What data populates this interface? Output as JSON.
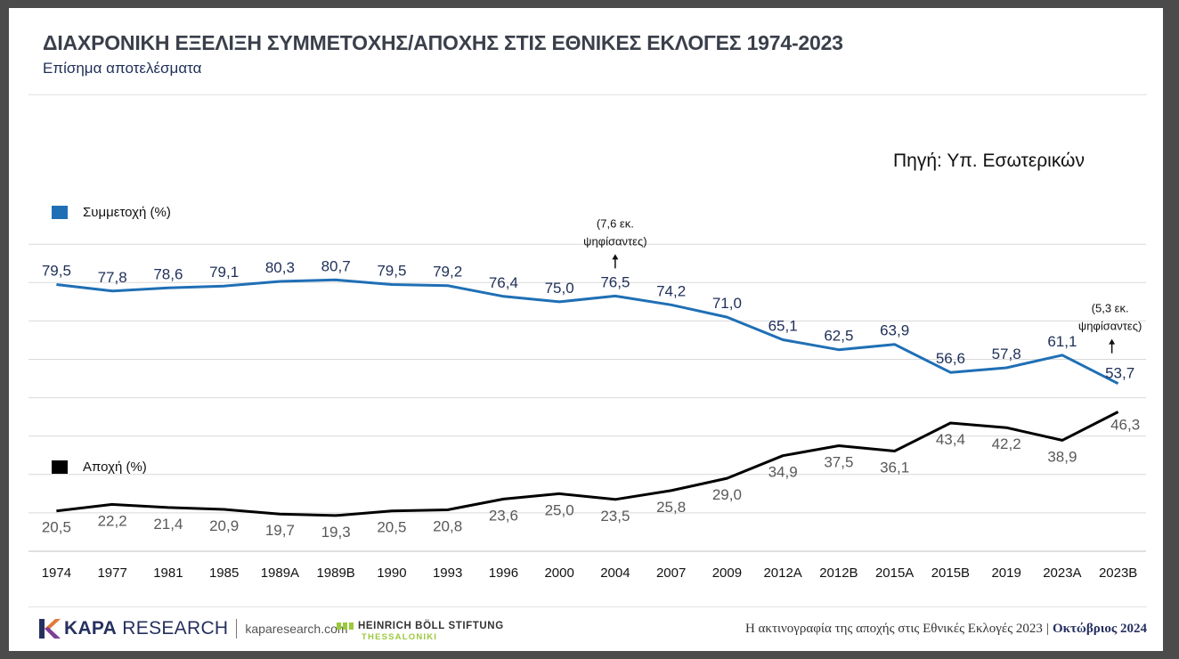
{
  "header": {
    "title": "ΔΙΑΧΡΟΝΙΚΗ ΕΞΕΛΙΞΗ ΣΥΜΜΕΤΟΧΗΣ/ΑΠΟΧΗΣ ΣΤΙΣ ΕΘΝΙΚΕΣ ΕΚΛΟΓΕΣ 1974-2023",
    "subtitle": "Επίσημα αποτελέσματα",
    "source": "Πηγή: Υπ. Εσωτερικών"
  },
  "chart_data": {
    "type": "line",
    "title": "ΔΙΑΧΡΟΝΙΚΗ ΕΞΕΛΙΞΗ ΣΥΜΜΕΤΟΧΗΣ/ΑΠΟΧΗΣ ΣΤΙΣ ΕΘΝΙΚΕΣ ΕΚΛΟΓΕΣ 1974-2023",
    "subtitle": "Επίσημα αποτελέσματα",
    "categories": [
      "1974",
      "1977",
      "1981",
      "1985",
      "1989A",
      "1989B",
      "1990",
      "1993",
      "1996",
      "2000",
      "2004",
      "2007",
      "2009",
      "2012A",
      "2012B",
      "2015A",
      "2015B",
      "2019",
      "2023A",
      "2023B"
    ],
    "series": [
      {
        "name": "Συμμετοχή (%)",
        "color": "#1f6fb5",
        "values": [
          79.5,
          77.8,
          78.6,
          79.1,
          80.3,
          80.7,
          79.5,
          79.2,
          76.4,
          75.0,
          76.5,
          74.2,
          71.0,
          65.1,
          62.5,
          63.9,
          56.6,
          57.8,
          61.1,
          53.7
        ],
        "labels": [
          "79,5",
          "77,8",
          "78,6",
          "79,1",
          "80,3",
          "80,7",
          "79,5",
          "79,2",
          "76,4",
          "75,0",
          "76,5",
          "74,2",
          "71,0",
          "65,1",
          "62,5",
          "63,9",
          "56,6",
          "57,8",
          "61,1",
          "53,7"
        ],
        "label_color": "#1f2f58"
      },
      {
        "name": "Αποχή (%)",
        "color": "#000000",
        "values": [
          20.5,
          22.2,
          21.4,
          20.9,
          19.7,
          19.3,
          20.5,
          20.8,
          23.6,
          25.0,
          23.5,
          25.8,
          29.0,
          34.9,
          37.5,
          36.1,
          43.4,
          42.2,
          38.9,
          46.3
        ],
        "labels": [
          "20,5",
          "22,2",
          "21,4",
          "20,9",
          "19,7",
          "19,3",
          "20,5",
          "20,8",
          "23,6",
          "25,0",
          "23,5",
          "25,8",
          "29,0",
          "34,9",
          "37,5",
          "36,1",
          "43,4",
          "42,2",
          "38,9",
          "46,3"
        ],
        "label_color": "#595959"
      }
    ],
    "annotations": [
      {
        "category": "2004",
        "lines": [
          "(7,6 εκ.",
          "ψηφίσαντες)"
        ],
        "arrow": "up"
      },
      {
        "category": "2023B",
        "lines": [
          "(5,3 εκ.",
          "ψηφίσαντες)"
        ],
        "arrow": "up"
      }
    ],
    "ylim": [
      10,
      100
    ],
    "grid": true,
    "legend": "left"
  },
  "footer": {
    "brand_bold": "KAPA",
    "brand_rest": " RESEARCH",
    "url": "kaparesearch.com",
    "partner_line1": "HEINRICH BÖLL STIFTUNG",
    "partner_line2": "THESSALONIKI",
    "right_text": "Η ακτινογραφία της αποχής στις Εθνικές Εκλογές 2023",
    "right_sep": "|",
    "right_date": "Οκτώβριος 2024"
  },
  "colors": {
    "participation": "#1f6fb5",
    "abstention": "#000000",
    "brand": "#26305f",
    "partner": "#9bc93c"
  }
}
